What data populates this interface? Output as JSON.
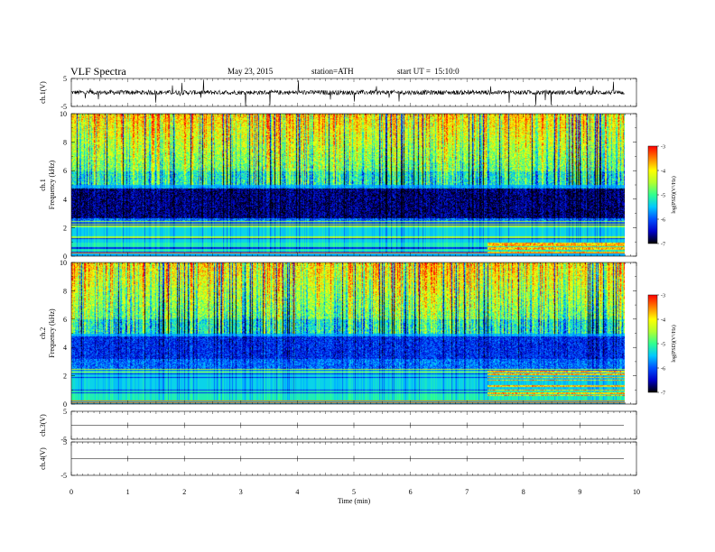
{
  "header": {
    "title": "VLF Spectra",
    "date": "May 23, 2015",
    "station": "station=ATH",
    "start_label": "start UT =",
    "start_time": "15:10:0"
  },
  "colors": {
    "colormap": [
      "#000000",
      "#0000c8",
      "#0050ff",
      "#00c8ff",
      "#30ff90",
      "#b0ff30",
      "#ffff00",
      "#ff8000",
      "#ff0000",
      "#ffffff"
    ],
    "waveform": "#000000"
  },
  "chart_data": [
    {
      "type": "line",
      "name": "ch1-waveform",
      "ylabel": "ch.1(V)",
      "ylim": [
        -5,
        5
      ],
      "yticks": [
        "5",
        "-5"
      ],
      "description_of_signal": "noisy waveform around 0 V with spikes",
      "xlim": [
        0,
        10
      ],
      "data_end_min": 9.8,
      "baseline": 0
    },
    {
      "type": "heatmap",
      "name": "ch1-spectrogram",
      "ylabel": "ch.1\nFrequency (kHz)",
      "ylim": [
        0,
        10
      ],
      "yticks": [
        "0",
        "2",
        "4",
        "6",
        "8",
        "10"
      ],
      "xlim": [
        0,
        10
      ],
      "data_end_min": 9.8,
      "colorbar": {
        "label": "log(PSD)(V²/Hz)",
        "ticks": [
          "-3",
          "-4",
          "-5",
          "-6",
          "-7"
        ],
        "range": [
          -7,
          -3
        ]
      }
    },
    {
      "type": "heatmap",
      "name": "ch2-spectrogram",
      "ylabel": "ch.2\nFrequency (kHz)",
      "ylim": [
        0,
        10
      ],
      "yticks": [
        "0",
        "2",
        "4",
        "6",
        "8",
        "10"
      ],
      "xlim": [
        0,
        10
      ],
      "data_end_min": 9.8,
      "colorbar": {
        "label": "log(PSD)(V²/Hz)",
        "ticks": [
          "-3",
          "-4",
          "-5",
          "-6",
          "-7"
        ],
        "range": [
          -7,
          -3
        ]
      }
    },
    {
      "type": "line",
      "name": "ch3-waveform",
      "ylabel": "ch.3(V)",
      "ylim": [
        -5,
        5
      ],
      "yticks": [
        "5",
        "-5"
      ],
      "xlim": [
        0,
        10
      ],
      "data_end_min": 9.8,
      "baseline": 0
    },
    {
      "type": "line",
      "name": "ch4-waveform",
      "ylabel": "ch.4(V)",
      "ylim": [
        -5,
        5
      ],
      "yticks": [
        "5",
        "-5"
      ],
      "xlim": [
        0,
        10
      ],
      "data_end_min": 9.8,
      "baseline": 0
    }
  ],
  "xaxis": {
    "label": "Time (min)",
    "ticks": [
      "0",
      "1",
      "2",
      "3",
      "4",
      "5",
      "6",
      "7",
      "8",
      "9",
      "10"
    ]
  }
}
